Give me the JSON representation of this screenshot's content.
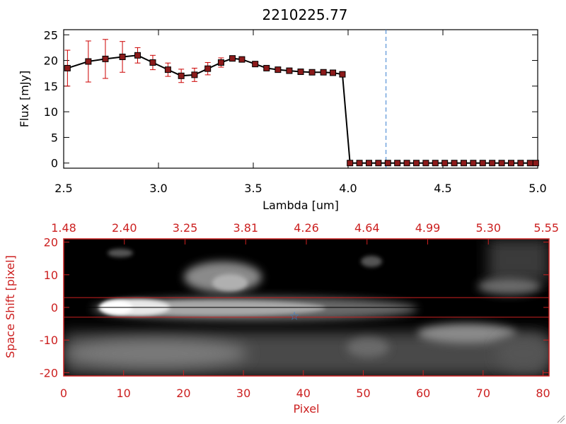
{
  "colors": {
    "line": "#000000",
    "marker": "#8b1a1a",
    "errorbar": "#cc0000",
    "axis_top": "#000000",
    "axis_bottom": "#cc2020",
    "dashed_vline": "#3a7fd0",
    "star": "#3a7fd0",
    "image_background": "#000000"
  },
  "chart_data": [
    {
      "type": "line",
      "title": "2210225.77",
      "xlabel": "Lambda [um]",
      "ylabel": "Flux [mJy]",
      "xlim": [
        2.5,
        5.0
      ],
      "ylim": [
        -1,
        26
      ],
      "xticks": [
        "2.5",
        "3.0",
        "3.5",
        "4.0",
        "4.5",
        "5.0"
      ],
      "yticks": [
        "0",
        "5",
        "10",
        "15",
        "20",
        "25"
      ],
      "vline_dashed_x": 4.2,
      "grid": false,
      "series": [
        {
          "x": [
            2.52,
            2.63,
            2.72,
            2.81,
            2.89,
            2.97,
            3.05,
            3.12,
            3.19,
            3.26,
            3.33,
            3.39,
            3.44,
            3.51,
            3.57,
            3.63,
            3.69,
            3.75,
            3.81,
            3.87,
            3.92,
            3.97,
            4.01,
            4.06,
            4.11,
            4.16,
            4.21,
            4.26,
            4.31,
            4.36,
            4.41,
            4.46,
            4.51,
            4.56,
            4.61,
            4.66,
            4.71,
            4.76,
            4.81,
            4.86,
            4.91,
            4.96,
            4.99
          ],
          "y": [
            18.5,
            19.8,
            20.3,
            20.7,
            21.0,
            19.6,
            18.2,
            17.0,
            17.2,
            18.4,
            19.6,
            20.4,
            20.2,
            19.3,
            18.5,
            18.2,
            18.0,
            17.8,
            17.7,
            17.7,
            17.6,
            17.3,
            0,
            0,
            0,
            0,
            0,
            0,
            0,
            0,
            0,
            0,
            0,
            0,
            0,
            0,
            0,
            0,
            0,
            0,
            0,
            0,
            0
          ],
          "err": [
            3.5,
            4.0,
            3.8,
            3.0,
            1.5,
            1.4,
            1.3,
            1.3,
            1.3,
            1.2,
            0.9,
            0.5,
            0.4,
            0.3,
            0.3,
            0.3,
            0.3,
            0.3,
            0.3,
            0.3,
            0.3,
            0.3,
            0,
            0,
            0,
            0,
            0,
            0,
            0,
            0,
            0,
            0,
            0,
            0,
            0,
            0,
            0,
            0,
            0,
            0,
            0,
            0,
            0
          ]
        }
      ]
    },
    {
      "type": "heatmap",
      "xlabel": "Pixel",
      "ylabel": "Space Shift [pixel]",
      "xlim": [
        0,
        81
      ],
      "ylim": [
        -21,
        21
      ],
      "xticks": [
        "0",
        "10",
        "20",
        "30",
        "40",
        "50",
        "60",
        "70",
        "80"
      ],
      "yticks": [
        "-20",
        "-10",
        "0",
        "10",
        "20"
      ],
      "top_axis_ticks": [
        "1.48",
        "2.40",
        "3.25",
        "3.81",
        "4.26",
        "4.64",
        "4.99",
        "5.30",
        "5.55"
      ],
      "hlines_y": [
        3,
        0,
        -3
      ],
      "star_marker": {
        "x": 38.5,
        "y": -2.5
      }
    }
  ]
}
